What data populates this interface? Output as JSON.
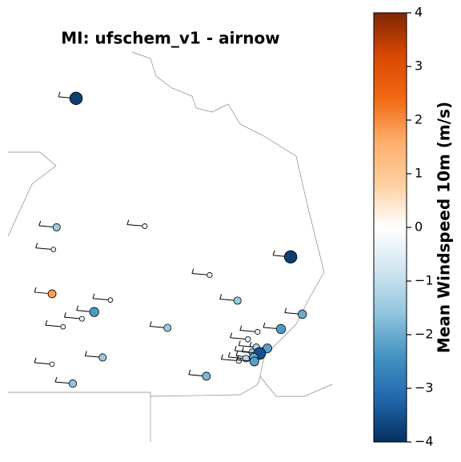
{
  "chart_data": {
    "type": "scatter",
    "title": "MI: ufschem_v1 - airnow",
    "colorbar_label": "Mean Windspeed 10m (m/s)",
    "xlim": [
      -87.0,
      -82.0
    ],
    "ylim": [
      40.85,
      48.39
    ],
    "clim": [
      -4,
      4
    ],
    "cticks": [
      {
        "value": -4,
        "label": "−4"
      },
      {
        "value": -3,
        "label": "−3"
      },
      {
        "value": -2,
        "label": "−2"
      },
      {
        "value": -1,
        "label": "−1"
      },
      0,
      1,
      2,
      3,
      4
    ],
    "colormap": [
      "#053061",
      "#2166ac",
      "#4393c3",
      "#92c5de",
      "#d1e5f0",
      "#ffffff",
      "#fdd0a2",
      "#fdae6b",
      "#f16913",
      "#d94801",
      "#7f2704"
    ],
    "x": [
      -85.95,
      -86.25,
      -84.89,
      -86.3,
      -82.64,
      -83.89,
      -86.32,
      -85.42,
      -83.46,
      -85.67,
      -85.86,
      -82.46,
      -86.15,
      -84.54,
      -82.79,
      -83.15,
      -83.3,
      -83.0,
      -83.17,
      -83.23,
      -85.54,
      -83.12,
      -83.21,
      -83.33,
      -83.44,
      -86.32,
      -83.2,
      -83.94,
      -86.0
    ],
    "y": [
      46.87,
      44.6,
      44.62,
      44.21,
      44.08,
      43.76,
      43.43,
      43.32,
      43.31,
      43.11,
      42.99,
      43.07,
      42.85,
      42.83,
      42.81,
      42.76,
      42.63,
      42.47,
      42.49,
      42.4,
      42.31,
      42.38,
      42.31,
      42.29,
      42.25,
      42.19,
      42.24,
      41.98,
      41.85
    ],
    "values": [
      -3.8,
      -1.5,
      -0.4,
      -0.3,
      -3.8,
      -0.5,
      1.8,
      -0.3,
      -1.5,
      -2.3,
      -0.4,
      -2.0,
      -0.3,
      -1.5,
      -2.3,
      -0.5,
      -0.6,
      -2.2,
      -1.2,
      -1.4,
      -1.5,
      -3.5,
      -2.0,
      -1.2,
      -0.5,
      -0.3,
      -2.2,
      -1.8,
      -1.6
    ]
  }
}
